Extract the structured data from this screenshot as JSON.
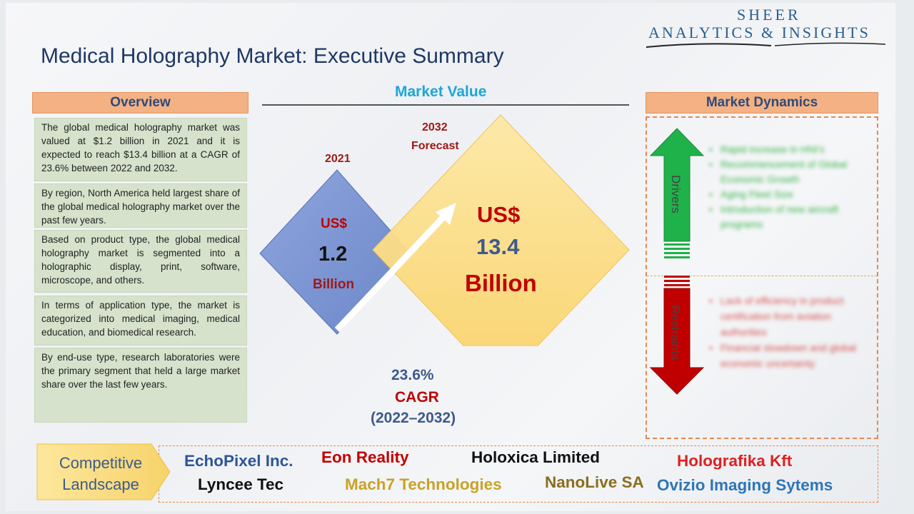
{
  "logo": {
    "line1": "SHEER",
    "line2": "ANALYTICS & INSIGHTS"
  },
  "title": "Medical Holography Market: Executive Summary",
  "overview": {
    "header": "Overview",
    "paragraphs": [
      "The global medical holography market was valued at $1.2 billion in 2021 and it is expected to reach $13.4 billion at a CAGR of 23.6% between 2022 and 2032.",
      "By region, North America held largest share of the global medical holography market over the past few years.",
      "Based on product type, the global medical holography market is segmented into a holographic display, print, software, microscope, and others.",
      "In terms of application type, the market is categorized into medical imaging, medical education, and biomedical research.",
      "By end-use type, research laboratories were the primary segment that held a large market share over the last few years."
    ]
  },
  "market_value": {
    "header": "Market Value",
    "y2021": {
      "year": "2021",
      "currency": "US$",
      "value": "1.2",
      "unit": "Billion"
    },
    "y2032": {
      "year": "2032",
      "forecast": "Forecast",
      "currency": "US$",
      "value": "13.4",
      "unit": "Billion"
    },
    "cagr": {
      "value": "23.6%",
      "label": "CAGR",
      "period": "(2022–2032)"
    }
  },
  "dynamics": {
    "header": "Market Dynamics",
    "drivers_label": "Drivers",
    "restraints_label": "Restraints",
    "drivers": [
      "Rapid increase in HNI's",
      "Recommencement of Global Economic Growth",
      "Aging Fleet Size",
      "Introduction of new aircraft programs"
    ],
    "restraints": [
      "Lack of efficiency in product certification from aviation authorities",
      "Financial slowdown and global economic uncertainty"
    ]
  },
  "competitive": {
    "label_line1": "Competitive",
    "label_line2": "Landscape",
    "companies": [
      {
        "name": "EchoPixel Inc.",
        "color": "#2e5597"
      },
      {
        "name": "Eon Reality",
        "color": "#c00000"
      },
      {
        "name": "Holoxica Limited",
        "color": "#111111"
      },
      {
        "name": "Holografika Kft",
        "color": "#e02020"
      },
      {
        "name": "Lyncee Tec",
        "color": "#111111"
      },
      {
        "name": "Mach7 Technologies",
        "color": "#c9a227"
      },
      {
        "name": "NanoLive SA",
        "color": "#8a6d1f"
      },
      {
        "name": "Ovizio Imaging Sytems",
        "color": "#2e75b6"
      }
    ]
  }
}
